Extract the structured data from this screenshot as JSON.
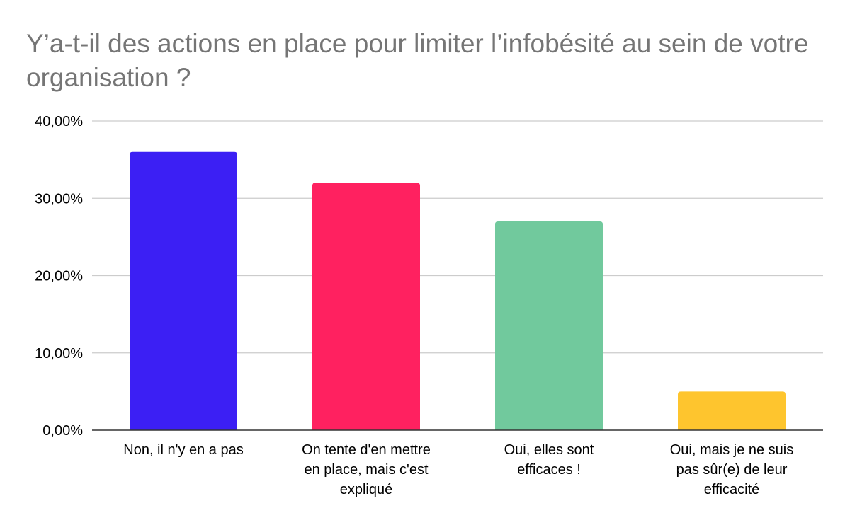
{
  "chart_data": {
    "type": "bar",
    "title": "Y’a-t-il des actions en place pour limiter l’infobésité au sein de votre organisation ?",
    "xlabel": "",
    "ylabel": "",
    "categories": [
      [
        "Non, il n'y en a pas"
      ],
      [
        "On tente d'en mettre",
        "en place, mais c'est",
        "expliqué"
      ],
      [
        "Oui, elles sont",
        "efficaces !"
      ],
      [
        "Oui, mais je ne suis",
        "pas sûr(e) de leur",
        "efficacité"
      ]
    ],
    "values": [
      36,
      32,
      27,
      5
    ],
    "colors": [
      "#3c1ff4",
      "#ff2160",
      "#71c99d",
      "#fec52e"
    ],
    "ylim": [
      0,
      40
    ],
    "yticks": [
      0,
      10,
      20,
      30,
      40
    ],
    "ytick_labels": [
      "0,00%",
      "10,00%",
      "20,00%",
      "30,00%",
      "40,00%"
    ],
    "grid": true,
    "legend": "none"
  }
}
